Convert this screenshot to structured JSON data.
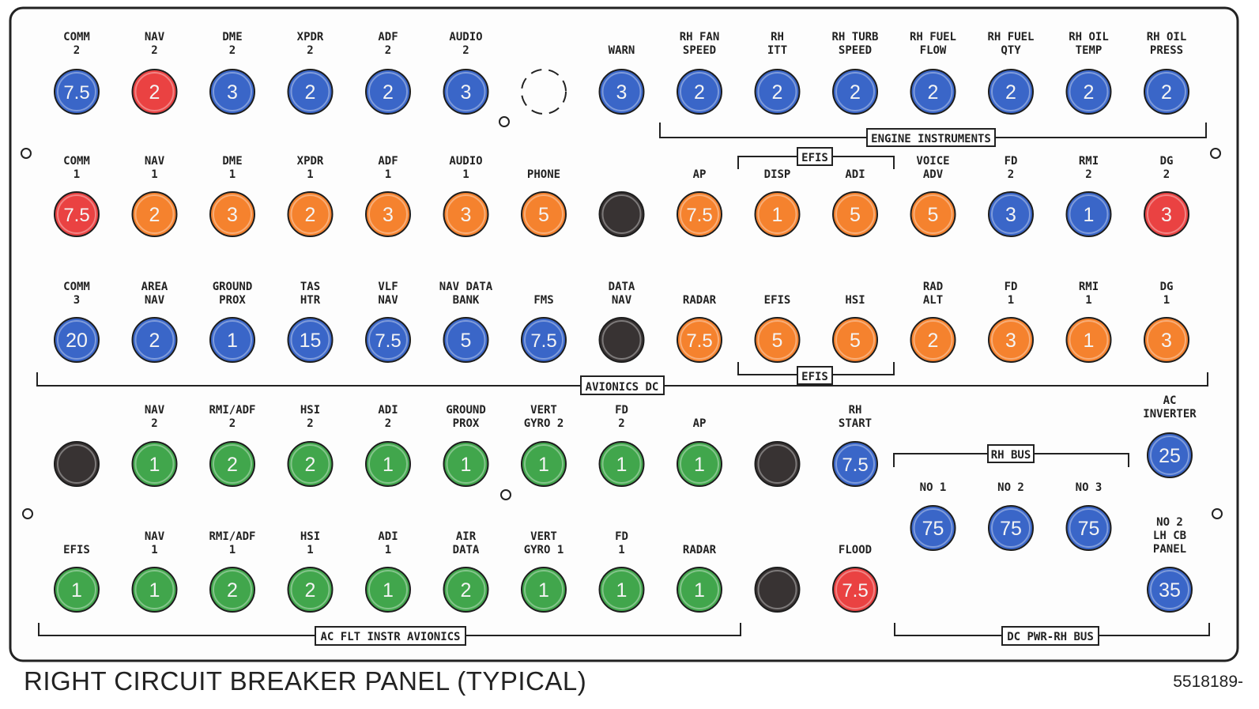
{
  "caption": "RIGHT CIRCUIT BREAKER PANEL (TYPICAL)",
  "figure_number": "5518189-",
  "colors": {
    "blue": "#3a66c8",
    "red": "#ea4242",
    "orange": "#f5822e",
    "green": "#41a64c",
    "black": "#383333"
  },
  "breakers": [
    {
      "row": 1,
      "col": 1,
      "label": [
        "COMM",
        "2"
      ],
      "value": "7.5",
      "color": "blue"
    },
    {
      "row": 1,
      "col": 2,
      "label": [
        "NAV",
        "2"
      ],
      "value": "2",
      "color": "red"
    },
    {
      "row": 1,
      "col": 3,
      "label": [
        "DME",
        "2"
      ],
      "value": "3",
      "color": "blue"
    },
    {
      "row": 1,
      "col": 4,
      "label": [
        "XPDR",
        "2"
      ],
      "value": "2",
      "color": "blue"
    },
    {
      "row": 1,
      "col": 5,
      "label": [
        "ADF",
        "2"
      ],
      "value": "2",
      "color": "blue"
    },
    {
      "row": 1,
      "col": 6,
      "label": [
        "AUDIO",
        "2"
      ],
      "value": "3",
      "color": "blue"
    },
    {
      "row": 1,
      "col": 7,
      "label": [],
      "value": "",
      "color": "empty"
    },
    {
      "row": 1,
      "col": 8,
      "label": [
        "WARN"
      ],
      "value": "3",
      "color": "blue"
    },
    {
      "row": 1,
      "col": 9,
      "label": [
        "RH FAN",
        "SPEED"
      ],
      "value": "2",
      "color": "blue"
    },
    {
      "row": 1,
      "col": 10,
      "label": [
        "RH",
        "ITT"
      ],
      "value": "2",
      "color": "blue"
    },
    {
      "row": 1,
      "col": 11,
      "label": [
        "RH TURB",
        "SPEED"
      ],
      "value": "2",
      "color": "blue"
    },
    {
      "row": 1,
      "col": 12,
      "label": [
        "RH FUEL",
        "FLOW"
      ],
      "value": "2",
      "color": "blue"
    },
    {
      "row": 1,
      "col": 13,
      "label": [
        "RH FUEL",
        "QTY"
      ],
      "value": "2",
      "color": "blue"
    },
    {
      "row": 1,
      "col": 14,
      "label": [
        "RH OIL",
        "TEMP"
      ],
      "value": "2",
      "color": "blue"
    },
    {
      "row": 1,
      "col": 15,
      "label": [
        "RH OIL",
        "PRESS"
      ],
      "value": "2",
      "color": "blue"
    },
    {
      "row": 2,
      "col": 1,
      "label": [
        "COMM",
        "1"
      ],
      "value": "7.5",
      "color": "red"
    },
    {
      "row": 2,
      "col": 2,
      "label": [
        "NAV",
        "1"
      ],
      "value": "2",
      "color": "orange"
    },
    {
      "row": 2,
      "col": 3,
      "label": [
        "DME",
        "1"
      ],
      "value": "3",
      "color": "orange"
    },
    {
      "row": 2,
      "col": 4,
      "label": [
        "XPDR",
        "1"
      ],
      "value": "2",
      "color": "orange"
    },
    {
      "row": 2,
      "col": 5,
      "label": [
        "ADF",
        "1"
      ],
      "value": "3",
      "color": "orange"
    },
    {
      "row": 2,
      "col": 6,
      "label": [
        "AUDIO",
        "1"
      ],
      "value": "3",
      "color": "orange"
    },
    {
      "row": 2,
      "col": 7,
      "label": [
        "PHONE"
      ],
      "value": "5",
      "color": "orange"
    },
    {
      "row": 2,
      "col": 8,
      "label": [],
      "value": "",
      "color": "black"
    },
    {
      "row": 2,
      "col": 9,
      "label": [
        "AP"
      ],
      "value": "7.5",
      "color": "orange"
    },
    {
      "row": 2,
      "col": 10,
      "label": [
        "DISP"
      ],
      "value": "1",
      "color": "orange"
    },
    {
      "row": 2,
      "col": 11,
      "label": [
        "ADI"
      ],
      "value": "5",
      "color": "orange"
    },
    {
      "row": 2,
      "col": 12,
      "label": [
        "VOICE",
        "ADV"
      ],
      "value": "5",
      "color": "orange"
    },
    {
      "row": 2,
      "col": 13,
      "label": [
        "FD",
        "2"
      ],
      "value": "3",
      "color": "blue"
    },
    {
      "row": 2,
      "col": 14,
      "label": [
        "RMI",
        "2"
      ],
      "value": "1",
      "color": "blue"
    },
    {
      "row": 2,
      "col": 15,
      "label": [
        "DG",
        "2"
      ],
      "value": "3",
      "color": "red"
    },
    {
      "row": 3,
      "col": 1,
      "label": [
        "COMM",
        "3"
      ],
      "value": "20",
      "color": "blue"
    },
    {
      "row": 3,
      "col": 2,
      "label": [
        "AREA",
        "NAV"
      ],
      "value": "2",
      "color": "blue"
    },
    {
      "row": 3,
      "col": 3,
      "label": [
        "GROUND",
        "PROX"
      ],
      "value": "1",
      "color": "blue"
    },
    {
      "row": 3,
      "col": 4,
      "label": [
        "TAS",
        "HTR"
      ],
      "value": "15",
      "color": "blue"
    },
    {
      "row": 3,
      "col": 5,
      "label": [
        "VLF",
        "NAV"
      ],
      "value": "7.5",
      "color": "blue"
    },
    {
      "row": 3,
      "col": 6,
      "label": [
        "NAV DATA",
        "BANK"
      ],
      "value": "5",
      "color": "blue"
    },
    {
      "row": 3,
      "col": 7,
      "label": [
        "FMS"
      ],
      "value": "7.5",
      "color": "blue"
    },
    {
      "row": 3,
      "col": 8,
      "label": [
        "DATA",
        "NAV"
      ],
      "value": "",
      "color": "black"
    },
    {
      "row": 3,
      "col": 9,
      "label": [
        "RADAR"
      ],
      "value": "7.5",
      "color": "orange"
    },
    {
      "row": 3,
      "col": 10,
      "label": [
        "EFIS"
      ],
      "value": "5",
      "color": "orange"
    },
    {
      "row": 3,
      "col": 11,
      "label": [
        "HSI"
      ],
      "value": "5",
      "color": "orange"
    },
    {
      "row": 3,
      "col": 12,
      "label": [
        "RAD",
        "ALT"
      ],
      "value": "2",
      "color": "orange"
    },
    {
      "row": 3,
      "col": 13,
      "label": [
        "FD",
        "1"
      ],
      "value": "3",
      "color": "orange"
    },
    {
      "row": 3,
      "col": 14,
      "label": [
        "RMI",
        "1"
      ],
      "value": "1",
      "color": "orange"
    },
    {
      "row": 3,
      "col": 15,
      "label": [
        "DG",
        "1"
      ],
      "value": "3",
      "color": "orange"
    },
    {
      "row": 4,
      "col": 1,
      "label": [],
      "value": "",
      "color": "black"
    },
    {
      "row": 4,
      "col": 2,
      "label": [
        "NAV",
        "2"
      ],
      "value": "1",
      "color": "green"
    },
    {
      "row": 4,
      "col": 3,
      "label": [
        "RMI/ADF",
        "2"
      ],
      "value": "2",
      "color": "green"
    },
    {
      "row": 4,
      "col": 4,
      "label": [
        "HSI",
        "2"
      ],
      "value": "2",
      "color": "green"
    },
    {
      "row": 4,
      "col": 5,
      "label": [
        "ADI",
        "2"
      ],
      "value": "1",
      "color": "green"
    },
    {
      "row": 4,
      "col": 6,
      "label": [
        "GROUND",
        "PROX"
      ],
      "value": "1",
      "color": "green"
    },
    {
      "row": 4,
      "col": 7,
      "label": [
        "VERT",
        "GYRO 2"
      ],
      "value": "1",
      "color": "green"
    },
    {
      "row": 4,
      "col": 8,
      "label": [
        "FD",
        "2"
      ],
      "value": "1",
      "color": "green"
    },
    {
      "row": 4,
      "col": 9,
      "label": [
        "AP"
      ],
      "value": "1",
      "color": "green"
    },
    {
      "row": 4,
      "col": 10,
      "label": [],
      "value": "",
      "color": "black"
    },
    {
      "row": 4,
      "col": 11,
      "label": [
        "RH",
        "START"
      ],
      "value": "7.5",
      "color": "blue"
    },
    {
      "row": 4,
      "col": 15,
      "label": [
        "AC",
        "INVERTER"
      ],
      "value": "25",
      "color": "blue"
    },
    {
      "row": 5,
      "col": 1,
      "label": [
        "EFIS"
      ],
      "value": "1",
      "color": "green"
    },
    {
      "row": 5,
      "col": 2,
      "label": [
        "NAV",
        "1"
      ],
      "value": "1",
      "color": "green"
    },
    {
      "row": 5,
      "col": 3,
      "label": [
        "RMI/ADF",
        "1"
      ],
      "value": "2",
      "color": "green"
    },
    {
      "row": 5,
      "col": 4,
      "label": [
        "HSI",
        "1"
      ],
      "value": "2",
      "color": "green"
    },
    {
      "row": 5,
      "col": 5,
      "label": [
        "ADI",
        "1"
      ],
      "value": "1",
      "color": "green"
    },
    {
      "row": 5,
      "col": 6,
      "label": [
        "AIR",
        "DATA"
      ],
      "value": "2",
      "color": "green"
    },
    {
      "row": 5,
      "col": 7,
      "label": [
        "VERT",
        "GYRO 1"
      ],
      "value": "1",
      "color": "green"
    },
    {
      "row": 5,
      "col": 8,
      "label": [
        "FD",
        "1"
      ],
      "value": "1",
      "color": "green"
    },
    {
      "row": 5,
      "col": 9,
      "label": [
        "RADAR"
      ],
      "value": "1",
      "color": "green"
    },
    {
      "row": 5,
      "col": 10,
      "label": [],
      "value": "",
      "color": "black"
    },
    {
      "row": 5,
      "col": 11,
      "label": [
        "FLOOD"
      ],
      "value": "7.5",
      "color": "red"
    },
    {
      "row": 5,
      "col": 15,
      "label": [
        "NO 2",
        "LH CB",
        "PANEL"
      ],
      "value": "35",
      "color": "blue"
    },
    {
      "row": "bus",
      "col": 12,
      "label": [
        "NO 1"
      ],
      "value": "75",
      "color": "blue"
    },
    {
      "row": "bus",
      "col": 13,
      "label": [
        "NO 2"
      ],
      "value": "75",
      "color": "blue"
    },
    {
      "row": "bus",
      "col": 14,
      "label": [
        "NO 3"
      ],
      "value": "75",
      "color": "blue"
    }
  ],
  "groups": {
    "engine_instruments": "ENGINE INSTRUMENTS",
    "efis_top": "EFIS",
    "efis_bottom": "EFIS",
    "avionics_dc": "AVIONICS DC",
    "rh_bus": "RH BUS",
    "ac_flt_instr": "AC FLT INSTR AVIONICS",
    "dc_pwr": "DC PWR-RH BUS"
  }
}
